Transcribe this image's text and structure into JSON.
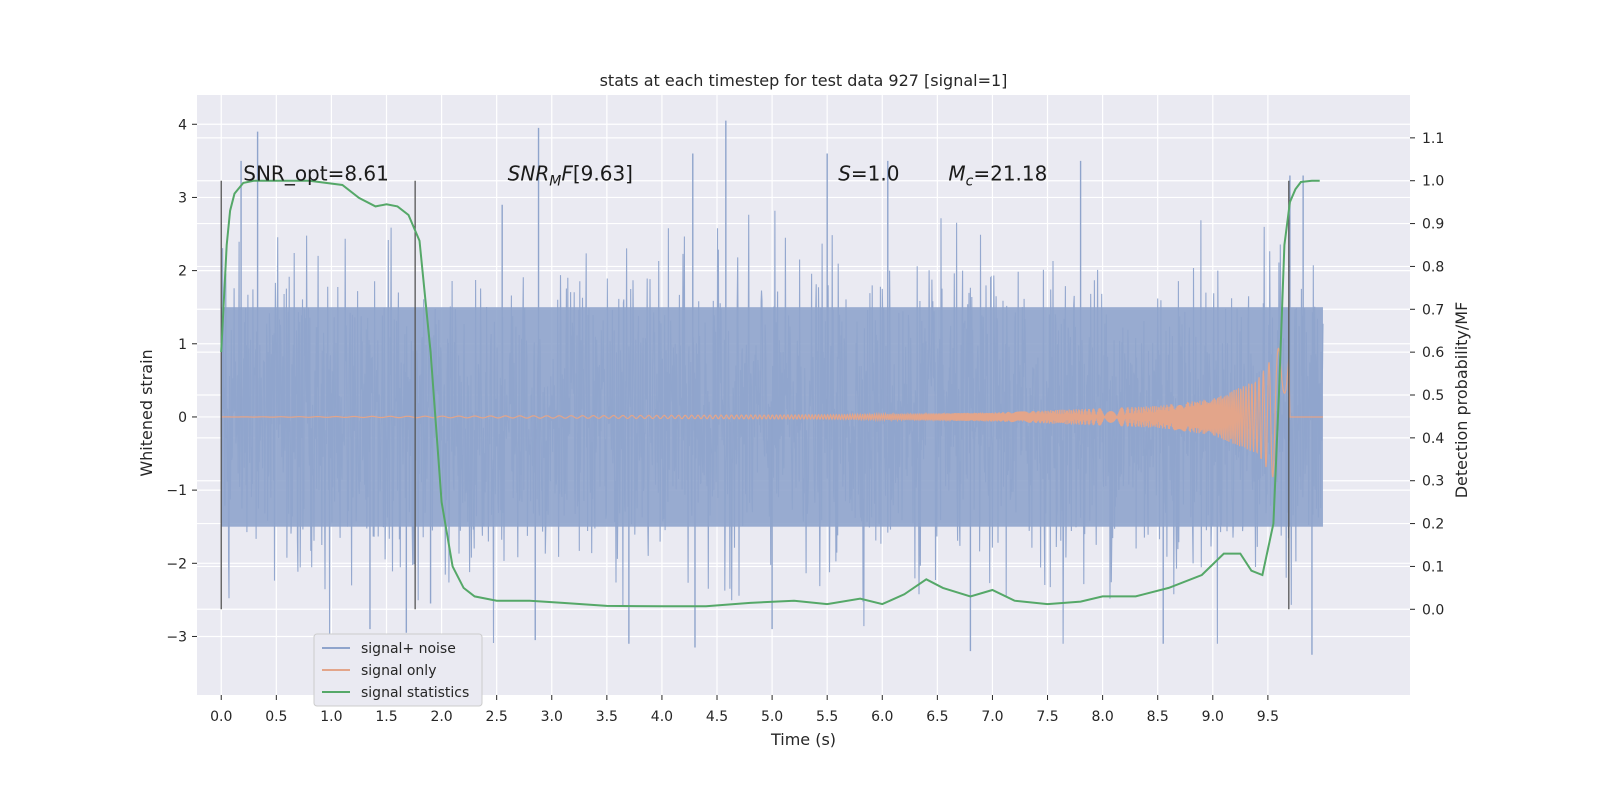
{
  "chart_data": {
    "type": "line",
    "title": "stats at each timestep for test data 927 [signal=1]",
    "xlabel": "Time (s)",
    "ylabel": "Whitened strain",
    "ylabel_right": "Detection probability/MF",
    "xlim": [
      -0.22,
      10.79
    ],
    "ylim": [
      -3.8,
      4.4
    ],
    "ylim_right": [
      -0.2,
      1.2
    ],
    "x_ticks": [
      0.0,
      0.5,
      1.0,
      1.5,
      2.0,
      2.5,
      3.0,
      3.5,
      4.0,
      4.5,
      5.0,
      5.5,
      6.0,
      6.5,
      7.0,
      7.5,
      8.0,
      8.5,
      9.0,
      9.5
    ],
    "x_tick_labels": [
      "0.0",
      "0.5",
      "1.0",
      "1.5",
      "2.0",
      "2.5",
      "3.0",
      "3.5",
      "4.0",
      "4.5",
      "5.0",
      "5.5",
      "6.0",
      "6.5",
      "7.0",
      "7.5",
      "8.0",
      "8.5",
      "9.0",
      "9.5"
    ],
    "y_ticks": [
      -3,
      -2,
      -1,
      0,
      1,
      2,
      3,
      4
    ],
    "y_tick_labels": [
      "−3",
      "−2",
      "−1",
      "0",
      "1",
      "2",
      "3",
      "4"
    ],
    "y_ticks_right": [
      0.0,
      0.1,
      0.2,
      0.3,
      0.4,
      0.5,
      0.6,
      0.7,
      0.8,
      0.9,
      1.0,
      1.1
    ],
    "y_tick_labels_right": [
      "0.0",
      "0.1",
      "0.2",
      "0.3",
      "0.4",
      "0.5",
      "0.6",
      "0.7",
      "0.8",
      "0.9",
      "1.0",
      "1.1"
    ],
    "grid": true,
    "legend": "bottom-left",
    "annotations": [
      {
        "text": "SNR_opt=8.61",
        "x": 0.2,
        "y": 1.0
      },
      {
        "text": "SNRMF=[9.63]",
        "x": 2.6,
        "y": 1.0
      },
      {
        "text": "S=1.0",
        "x": 5.6,
        "y": 1.0
      },
      {
        "text": "Mc=21.18",
        "x": 6.6,
        "y": 1.0
      }
    ],
    "vertical_lines": [
      0.0,
      1.76,
      9.69
    ],
    "vertical_line_range_right": [
      0.0,
      1.0
    ],
    "series": [
      {
        "name": "signal+ noise",
        "color": "#8fa4cc",
        "axis": "left",
        "x_range": [
          0.0,
          10.0
        ],
        "typical_amplitude": 1.5,
        "peak_values": [
          [
            0.33,
            3.9
          ],
          [
            0.18,
            3.5
          ],
          [
            4.58,
            4.05
          ],
          [
            2.88,
            3.95
          ],
          [
            2.55,
            2.9
          ],
          [
            4.28,
            3.6
          ],
          [
            5.5,
            3.6
          ],
          [
            6.05,
            3.5
          ],
          [
            7.8,
            3.5
          ],
          [
            9.7,
            3.3
          ],
          [
            9.82,
            3.3
          ],
          [
            1.35,
            -2.9
          ],
          [
            1.68,
            -2.95
          ],
          [
            2.85,
            -3.05
          ],
          [
            3.7,
            -3.1
          ],
          [
            4.3,
            -3.15
          ],
          [
            6.8,
            -3.2
          ],
          [
            9.9,
            -3.25
          ],
          [
            1.9,
            -2.55
          ],
          [
            5.0,
            -2.9
          ],
          [
            8.55,
            -3.1
          ]
        ]
      },
      {
        "name": "signal only",
        "color": "#e3a58a",
        "axis": "left",
        "description_points": [
          [
            0.0,
            0.0
          ],
          [
            5.5,
            0.03
          ],
          [
            7.0,
            0.06
          ],
          [
            8.5,
            0.15
          ],
          [
            9.0,
            0.25
          ],
          [
            9.4,
            0.5
          ],
          [
            9.6,
            0.95
          ],
          [
            9.69,
            1.0
          ],
          [
            9.7,
            0.0
          ],
          [
            10.0,
            0.0
          ]
        ]
      },
      {
        "name": "signal statistics",
        "color": "#55a868",
        "axis": "right",
        "x": [
          0.0,
          0.05,
          0.08,
          0.12,
          0.2,
          0.3,
          0.5,
          0.8,
          1.1,
          1.25,
          1.4,
          1.5,
          1.6,
          1.7,
          1.8,
          1.9,
          2.0,
          2.1,
          2.2,
          2.3,
          2.5,
          2.8,
          3.1,
          3.5,
          4.0,
          4.4,
          4.8,
          5.2,
          5.5,
          5.8,
          6.0,
          6.2,
          6.4,
          6.55,
          6.8,
          7.0,
          7.2,
          7.5,
          7.8,
          8.0,
          8.3,
          8.6,
          8.9,
          9.1,
          9.25,
          9.35,
          9.45,
          9.55,
          9.6,
          9.65,
          9.7,
          9.75,
          9.8,
          9.9,
          9.97
        ],
        "y": [
          0.6,
          0.85,
          0.93,
          0.97,
          0.995,
          1.0,
          1.0,
          1.0,
          0.99,
          0.96,
          0.94,
          0.945,
          0.94,
          0.92,
          0.86,
          0.6,
          0.25,
          0.1,
          0.05,
          0.03,
          0.02,
          0.02,
          0.015,
          0.008,
          0.007,
          0.007,
          0.015,
          0.02,
          0.012,
          0.025,
          0.012,
          0.035,
          0.07,
          0.05,
          0.03,
          0.045,
          0.02,
          0.012,
          0.018,
          0.03,
          0.03,
          0.05,
          0.08,
          0.13,
          0.13,
          0.09,
          0.08,
          0.2,
          0.5,
          0.85,
          0.95,
          0.98,
          0.997,
          1.0,
          1.0
        ]
      }
    ]
  }
}
